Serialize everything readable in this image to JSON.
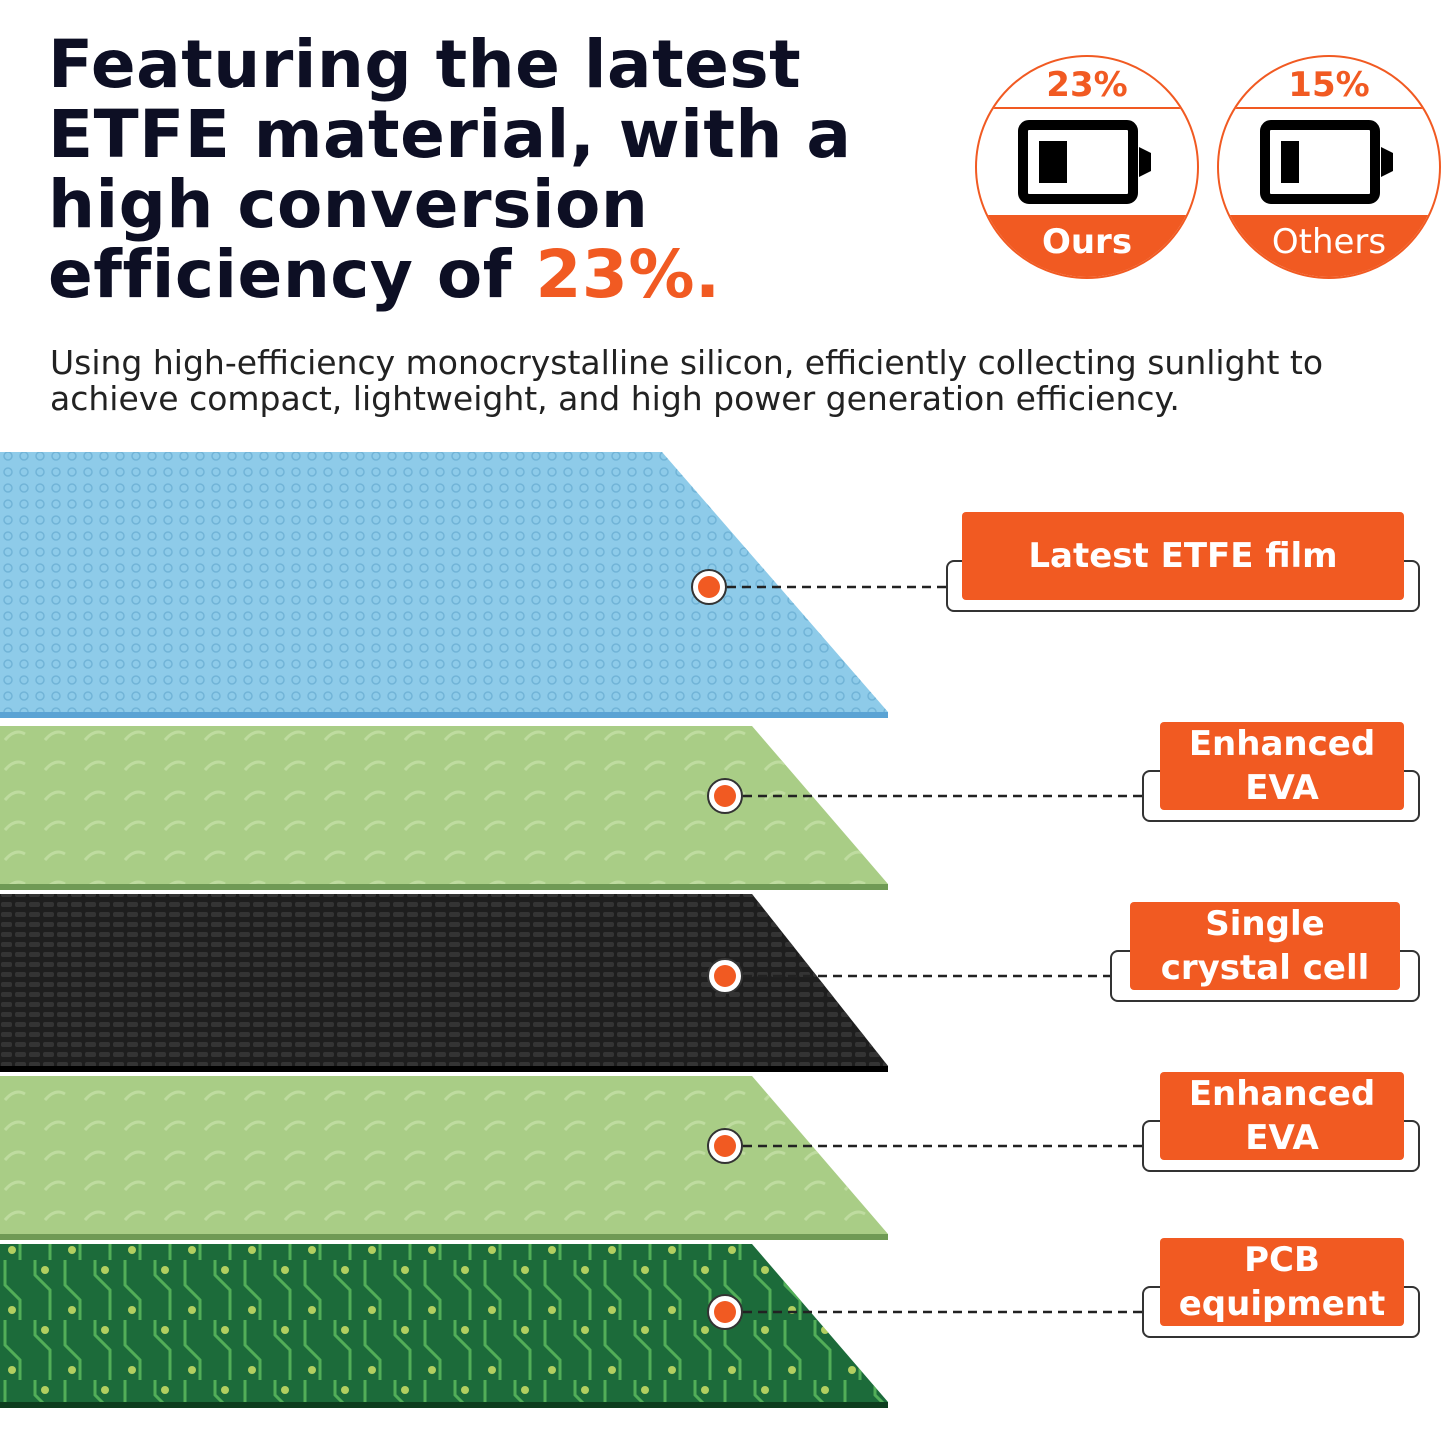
{
  "header": {
    "title_main": "Featuring the latest ETFE material, with a high conversion efficiency of ",
    "title_accent": "23%.",
    "subtitle": "Using high-efficiency monocrystalline silicon, efficiently collecting sunlight to achieve compact, lightweight, and high power generation efficiency."
  },
  "badges": [
    {
      "percent": "23%",
      "label": "Ours",
      "battery_level": 0.23
    },
    {
      "percent": "15%",
      "label": "Others",
      "battery_level": 0.15
    }
  ],
  "layers": [
    {
      "name": "Latest ETFE film",
      "color": "#8ecbe9",
      "edge": "#5aa3d4"
    },
    {
      "name": "Enhanced EVA",
      "color": "#a9cd86",
      "edge": "#6f9a55"
    },
    {
      "name": "Single crystal cell",
      "color": "#1e1e1e",
      "edge": "#000000"
    },
    {
      "name": "Enhanced EVA",
      "color": "#a9cd86",
      "edge": "#6f9a55"
    },
    {
      "name": "PCB equipment",
      "color": "#1c6b3a",
      "edge": "#0d3d1e"
    }
  ],
  "labels": [
    {
      "text": "Latest ETFE film"
    },
    {
      "text": "Enhanced\nEVA"
    },
    {
      "text": "Single\ncrystal cell"
    },
    {
      "text": "Enhanced\nEVA"
    },
    {
      "text": "PCB\nequipment"
    }
  ],
  "colors": {
    "accent": "#f15a22",
    "title": "#0d0f24"
  }
}
